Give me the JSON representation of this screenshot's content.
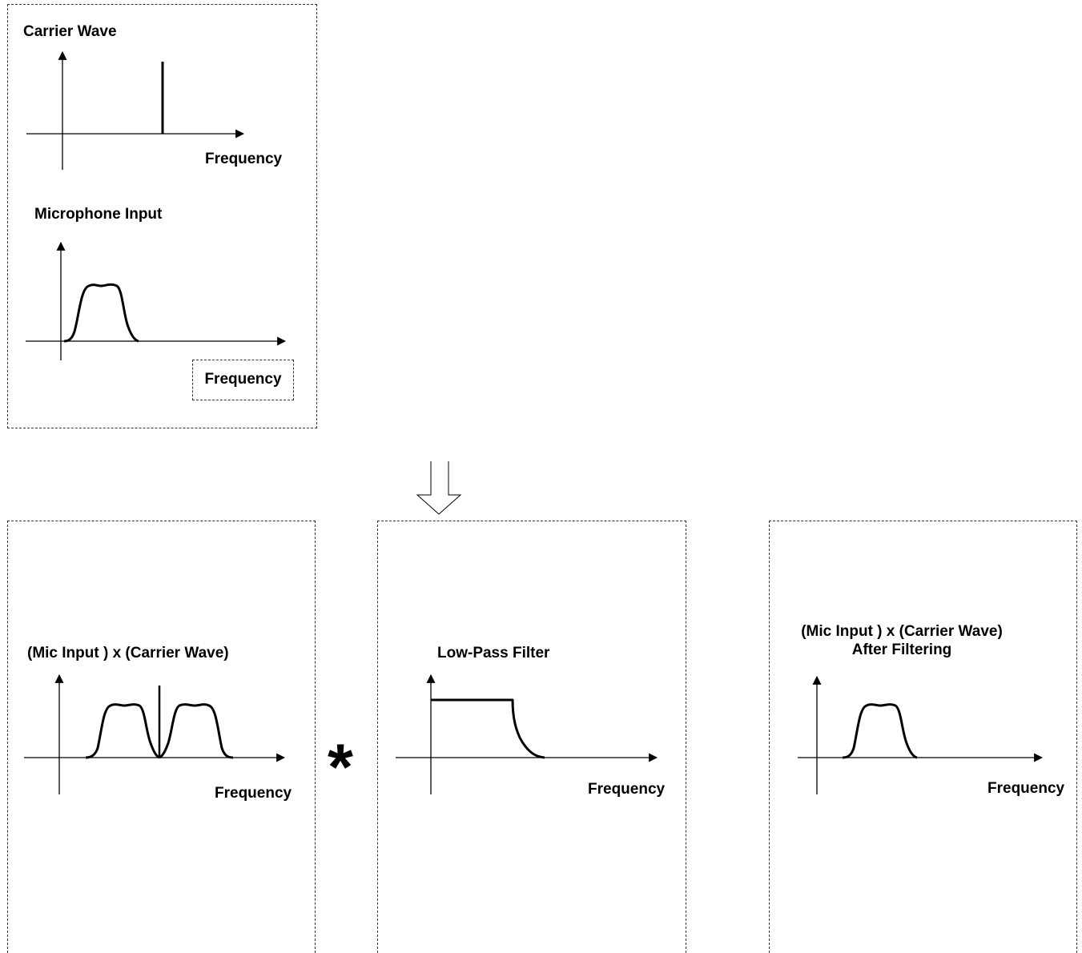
{
  "panels": {
    "carrier": {
      "title": "Carrier Wave",
      "axis_label": "Frequency"
    },
    "microphone": {
      "title": "Microphone Input",
      "axis_label": "Frequency"
    },
    "product": {
      "title": "(Mic Input ) x (Carrier Wave)",
      "axis_label": "Frequency"
    },
    "lowpass": {
      "title": "Low-Pass Filter",
      "axis_label": "Frequency"
    },
    "filtered": {
      "title_line1": "(Mic Input ) x (Carrier Wave)",
      "title_line2": "After Filtering",
      "axis_label": "Frequency"
    }
  },
  "operator": "*",
  "colors": {
    "line": "#000000",
    "border": "#333333",
    "background": "#ffffff"
  },
  "icons": {
    "flow": "down-hollow-arrow-icon"
  }
}
